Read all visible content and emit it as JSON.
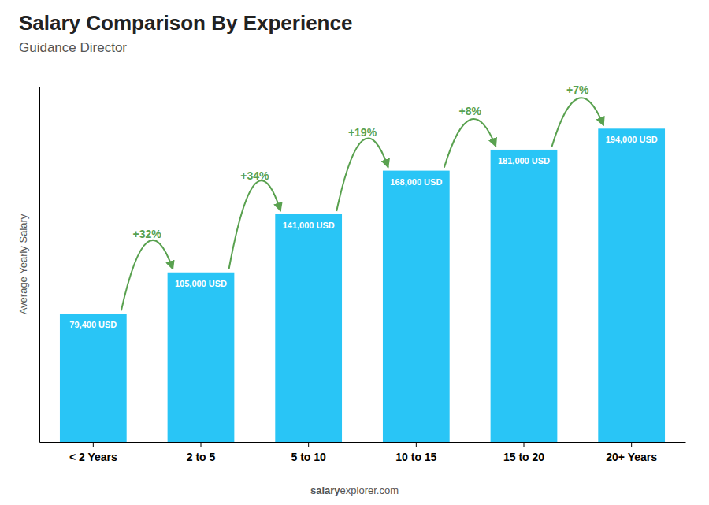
{
  "chart_data": {
    "type": "bar",
    "title": "Salary Comparison By Experience",
    "subtitle": "Guidance Director",
    "y_label": "Average Yearly Salary",
    "categories": [
      "< 2 Years",
      "2 to 5",
      "5 to 10",
      "10 to 15",
      "15 to 20",
      "20+ Years"
    ],
    "values": [
      79400,
      105000,
      141000,
      168000,
      181000,
      194000
    ],
    "value_labels": [
      "79,400 USD",
      "105,000 USD",
      "141,000 USD",
      "168,000 USD",
      "181,000 USD",
      "194,000 USD"
    ],
    "data_labels": true,
    "annotations": [
      null,
      "+32%",
      "+34%",
      "+19%",
      "+8%",
      "+7%"
    ],
    "footer": [
      "salary",
      "explorer.com"
    ],
    "color": "#29c5f6",
    "ylim": [
      0,
      220000
    ],
    "grid": false,
    "tick_labels": "x"
  }
}
